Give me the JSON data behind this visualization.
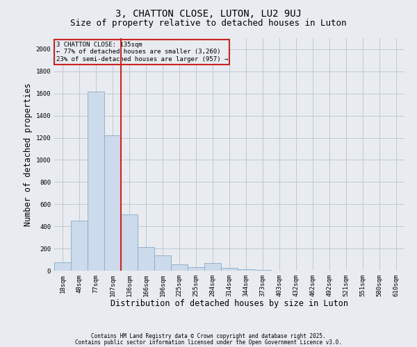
{
  "title1": "3, CHATTON CLOSE, LUTON, LU2 9UJ",
  "title2": "Size of property relative to detached houses in Luton",
  "xlabel": "Distribution of detached houses by size in Luton",
  "ylabel": "Number of detached properties",
  "categories": [
    "18sqm",
    "48sqm",
    "77sqm",
    "107sqm",
    "136sqm",
    "166sqm",
    "196sqm",
    "225sqm",
    "255sqm",
    "284sqm",
    "314sqm",
    "344sqm",
    "373sqm",
    "403sqm",
    "432sqm",
    "462sqm",
    "492sqm",
    "521sqm",
    "551sqm",
    "580sqm",
    "610sqm"
  ],
  "values": [
    75,
    450,
    1620,
    1220,
    510,
    215,
    140,
    55,
    30,
    70,
    25,
    10,
    5,
    2,
    0,
    0,
    0,
    0,
    0,
    0,
    0
  ],
  "bar_color": "#ccdaeb",
  "bar_edge_color": "#8aaac8",
  "grid_color": "#c0c8d4",
  "bg_color": "#e8ecf0",
  "vline_color": "#cc2222",
  "vline_pos": 3.5,
  "annotation_title": "3 CHATTON CLOSE: 135sqm",
  "annotation_line1": "← 77% of detached houses are smaller (3,260)",
  "annotation_line2": "23% of semi-detached houses are larger (957) →",
  "annotation_box_color": "#cc2222",
  "ylim": [
    0,
    2100
  ],
  "yticks": [
    0,
    200,
    400,
    600,
    800,
    1000,
    1200,
    1400,
    1600,
    1800,
    2000
  ],
  "footer1": "Contains HM Land Registry data © Crown copyright and database right 2025.",
  "footer2": "Contains public sector information licensed under the Open Government Licence v3.0.",
  "title_fontsize": 10,
  "subtitle_fontsize": 9,
  "tick_fontsize": 6.5,
  "label_fontsize": 8.5
}
